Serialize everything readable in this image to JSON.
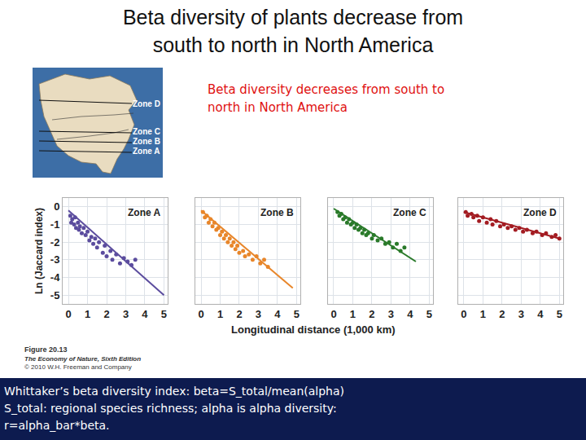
{
  "title": [
    "Beta diversity of plants decrease from",
    "south to north in North America"
  ],
  "subtitle": [
    "Beta diversity decreases from south to",
    "north in North America"
  ],
  "map": {
    "zones": [
      "Zone D",
      "Zone C",
      "Zone B",
      "Zone A"
    ]
  },
  "xlabel": "Longitudinal distance (1,000 km)",
  "ylabel": "Ln (Jaccard index)",
  "caption": [
    "Figure 20.13",
    "The Economy of Nature, Sixth Edition",
    "© 2010 W.H. Freeman and Company"
  ],
  "footer": [
    "Whittaker’s beta diversity index: beta=S_total/mean(alpha)",
    "S_total: regional species richness; alpha is alpha diversity:",
    "r=alpha_bar*beta."
  ],
  "chart_data": [
    {
      "type": "scatter",
      "title": "Zone A",
      "xlim": [
        -0.3,
        5.2
      ],
      "ylim": [
        -5.5,
        0.5
      ],
      "xticks": [
        0,
        1,
        2,
        3,
        4,
        5
      ],
      "yticks": [
        0,
        -1,
        -2,
        -3,
        -4,
        -5
      ],
      "grid": true,
      "series": [
        {
          "type": "scatter",
          "color": "#5b4c9e",
          "marker": "circle",
          "x": [
            0.1,
            0.15,
            0.2,
            0.3,
            0.35,
            0.4,
            0.5,
            0.55,
            0.6,
            0.7,
            0.8,
            0.9,
            1.0,
            1.1,
            1.2,
            1.3,
            1.4,
            1.5,
            1.6,
            1.8,
            1.9,
            2.0,
            2.2,
            2.3,
            2.5,
            2.7,
            2.9,
            3.1,
            3.3,
            3.5
          ],
          "values": [
            -0.5,
            -0.9,
            -0.7,
            -1.0,
            -0.6,
            -1.2,
            -0.9,
            -1.3,
            -1.1,
            -1.5,
            -1.2,
            -1.6,
            -1.4,
            -1.9,
            -1.7,
            -2.1,
            -1.8,
            -2.3,
            -2.0,
            -2.6,
            -2.2,
            -2.8,
            -2.5,
            -3.0,
            -2.7,
            -3.2,
            -2.9,
            -3.1,
            -3.3,
            -3.0
          ]
        },
        {
          "type": "line",
          "color": "#5b4c9e",
          "line_style": "solid",
          "x": [
            0,
            5
          ],
          "values": [
            -0.2,
            -5.0
          ]
        }
      ]
    },
    {
      "type": "scatter",
      "title": "Zone B",
      "xlim": [
        -0.3,
        5.2
      ],
      "ylim": [
        -5.5,
        0.5
      ],
      "xticks": [
        0,
        1,
        2,
        3,
        4,
        5
      ],
      "yticks": [
        0,
        -1,
        -2,
        -3,
        -4,
        -5
      ],
      "grid": true,
      "tick_labels": "x",
      "series": [
        {
          "type": "scatter",
          "color": "#e8862a",
          "marker": "circle",
          "x": [
            0.1,
            0.2,
            0.3,
            0.4,
            0.5,
            0.6,
            0.7,
            0.8,
            0.9,
            1.0,
            1.1,
            1.2,
            1.3,
            1.4,
            1.5,
            1.6,
            1.7,
            1.8,
            1.9,
            2.0,
            2.2,
            2.3,
            2.5,
            2.7,
            2.9,
            3.1,
            3.3,
            3.5
          ],
          "values": [
            -0.3,
            -0.6,
            -0.5,
            -0.9,
            -0.7,
            -1.1,
            -0.9,
            -1.3,
            -1.2,
            -1.6,
            -1.4,
            -1.8,
            -1.6,
            -2.0,
            -1.8,
            -2.2,
            -2.0,
            -2.4,
            -2.2,
            -2.6,
            -2.5,
            -2.8,
            -2.7,
            -3.0,
            -2.8,
            -3.2,
            -3.0,
            -3.4
          ]
        },
        {
          "type": "line",
          "color": "#e8862a",
          "line_style": "solid",
          "x": [
            0,
            4.8
          ],
          "values": [
            -0.2,
            -4.6
          ]
        }
      ]
    },
    {
      "type": "scatter",
      "title": "Zone C",
      "xlim": [
        -0.3,
        5.2
      ],
      "ylim": [
        -5.5,
        0.5
      ],
      "xticks": [
        0,
        1,
        2,
        3,
        4,
        5
      ],
      "yticks": [
        0,
        -1,
        -2,
        -3,
        -4,
        -5
      ],
      "grid": true,
      "tick_labels": "x",
      "series": [
        {
          "type": "scatter",
          "color": "#2a7a2a",
          "marker": "circle",
          "x": [
            0.2,
            0.3,
            0.4,
            0.5,
            0.6,
            0.7,
            0.8,
            0.9,
            1.0,
            1.1,
            1.2,
            1.3,
            1.4,
            1.5,
            1.6,
            1.7,
            1.8,
            2.0,
            2.1,
            2.3,
            2.5,
            2.7,
            2.9,
            3.1,
            3.3,
            3.5,
            3.7
          ],
          "values": [
            -0.3,
            -0.5,
            -0.4,
            -0.7,
            -0.6,
            -0.9,
            -0.7,
            -1.0,
            -0.9,
            -1.2,
            -1.0,
            -1.3,
            -1.2,
            -1.5,
            -1.3,
            -1.6,
            -1.5,
            -1.8,
            -1.6,
            -1.9,
            -1.8,
            -2.1,
            -2.0,
            -2.3,
            -2.1,
            -2.5,
            -2.3
          ]
        },
        {
          "type": "line",
          "color": "#2a7a2a",
          "line_style": "solid",
          "x": [
            0,
            4.3
          ],
          "values": [
            -0.1,
            -3.1
          ]
        }
      ]
    },
    {
      "type": "scatter",
      "title": "Zone D",
      "xlim": [
        -0.3,
        5.2
      ],
      "ylim": [
        -5.5,
        0.5
      ],
      "xticks": [
        0,
        1,
        2,
        3,
        4,
        5
      ],
      "yticks": [
        0,
        -1,
        -2,
        -3,
        -4,
        -5
      ],
      "grid": true,
      "tick_labels": "x",
      "series": [
        {
          "type": "scatter",
          "color": "#a31c22",
          "marker": "circle",
          "x": [
            0.1,
            0.2,
            0.4,
            0.5,
            0.7,
            0.8,
            1.0,
            1.2,
            1.4,
            1.5,
            1.7,
            1.9,
            2.1,
            2.3,
            2.5,
            2.7,
            2.9,
            3.1,
            3.3,
            3.6,
            3.8,
            4.1,
            4.3,
            4.6,
            4.8,
            5.0
          ],
          "values": [
            -0.3,
            -0.5,
            -0.4,
            -0.6,
            -0.5,
            -0.8,
            -0.6,
            -0.9,
            -0.7,
            -1.0,
            -0.8,
            -1.1,
            -1.0,
            -1.2,
            -1.1,
            -1.3,
            -1.2,
            -1.4,
            -1.3,
            -1.5,
            -1.4,
            -1.6,
            -1.5,
            -1.7,
            -1.6,
            -1.8
          ]
        },
        {
          "type": "line",
          "color": "#a31c22",
          "line_style": "solid",
          "x": [
            0,
            5
          ],
          "values": [
            -0.3,
            -1.8
          ]
        }
      ]
    }
  ]
}
